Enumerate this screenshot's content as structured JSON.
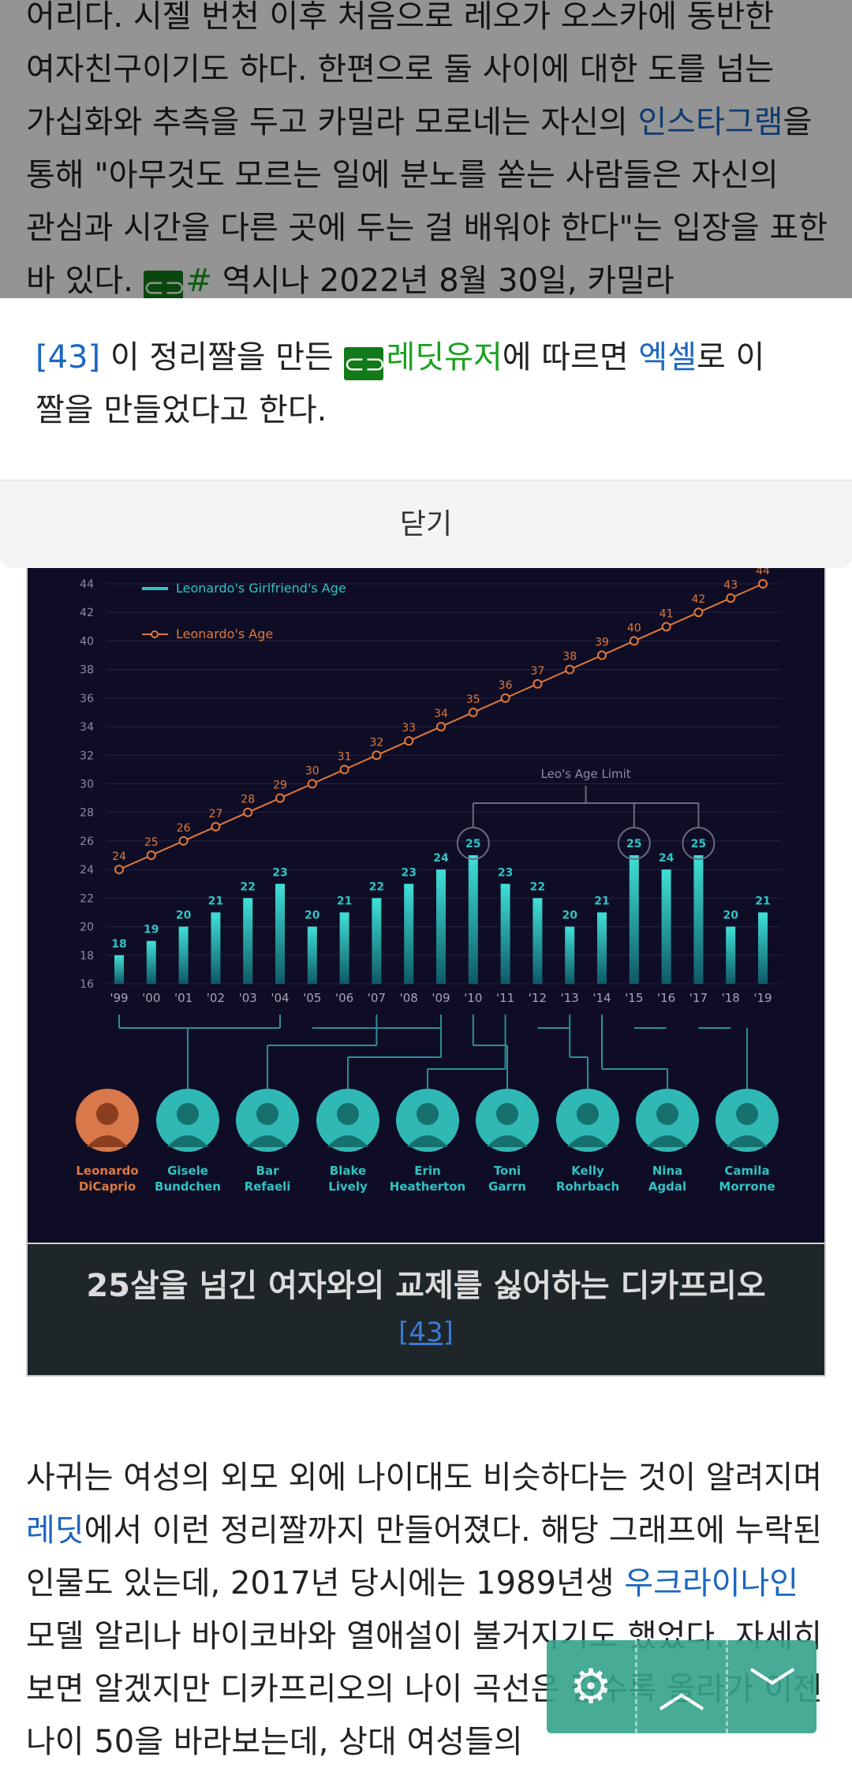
{
  "article": {
    "para1": {
      "s1": "어리다. 시젤 번천 이후 처음으로 레오가 오스카에 동반한 여자친구이기도 하다. 한편으로 둘 사이에 대한 도를 넘는 가십화와 추측을 두고 카밀라 모로네는 자신의 ",
      "link1": "인스타그램",
      "s2": "을 통해 \"아무것도 모르는 일에 분노를 쏟는 사람들은 자신의 관심과 시간을 다른 곳에 두는 걸 배워야 한다\"는 입장을 표한 바 있다. ",
      "ext_link": "#",
      "s3": " 역시나 2022년 8월 30일, 카밀라"
    },
    "para2": {
      "s1": "사귀는 여성의 외모 외에 나이대도 비슷하다는 것이 알려지며 ",
      "link1": "레딧",
      "s2": "에서 이런 정리짤까지 만들어졌다. 해당 그래프에 누락된 인물도 있는데, 2017년 당시에는 1989년생 ",
      "link2": "우크라이나인",
      "s3": " 모델 알리나 바이코바와 열애설이 불거지기도 했었다. 자세히 보면 알겠지만 디카프리오의 나이 곡선은 갈수록 올라가 이젠 나이 50을 바라보는데, 상대 여성들의"
    },
    "caption": {
      "title": "25살을 넘긴 여자와의 교제를 싫어하는 디카프리오",
      "ref": "[43]"
    }
  },
  "footnote_popup": {
    "ref": "[43]",
    "s1": " 이 정리짤을 만든 ",
    "ext_link": "레딧유저",
    "s2": "에 따르면 ",
    "link": "엑셀",
    "s3": "로 이 짤을 만들었다고 한다.",
    "close_label": "닫기"
  },
  "floating_buttons": [
    "gear-icon",
    "chevron-up-icon",
    "chevron-down-icon"
  ],
  "colors": {
    "accent_teal": "#2ec4c4",
    "orange": "#e0783a",
    "link_blue": "#1a66c0",
    "ext_green": "#19a01e"
  },
  "chart_data": {
    "type": "bar",
    "legend": [
      "Leonardo's Girlfriend's Age",
      "Leonardo's Age"
    ],
    "categories": [
      "'99",
      "'00",
      "'01",
      "'02",
      "'03",
      "'04",
      "'05",
      "'06",
      "'07",
      "'08",
      "'09",
      "'10",
      "'11",
      "'12",
      "'13",
      "'14",
      "'15",
      "'16",
      "'17",
      "'18",
      "'19"
    ],
    "series": [
      {
        "name": "Leonardo's Girlfriend's Age",
        "values": [
          18,
          19,
          20,
          21,
          22,
          23,
          20,
          21,
          22,
          23,
          24,
          25,
          23,
          22,
          20,
          21,
          25,
          24,
          25,
          20,
          21
        ]
      },
      {
        "name": "Leonardo's Age",
        "values": [
          24,
          25,
          26,
          27,
          28,
          29,
          30,
          31,
          32,
          33,
          34,
          35,
          36,
          37,
          38,
          39,
          40,
          41,
          42,
          43,
          44
        ]
      }
    ],
    "yticks": [
      16,
      18,
      20,
      22,
      24,
      26,
      28,
      30,
      32,
      34,
      36,
      38,
      40,
      42,
      44
    ],
    "ylim": [
      16,
      44
    ],
    "annotation": "Leo's Age Limit",
    "people": [
      {
        "first": "Leonardo",
        "last": "DiCaprio"
      },
      {
        "first": "Gisele",
        "last": "Bundchen"
      },
      {
        "first": "Bar",
        "last": "Refaeli"
      },
      {
        "first": "Blake",
        "last": "Lively"
      },
      {
        "first": "Erin",
        "last": "Heatherton"
      },
      {
        "first": "Toni",
        "last": "Garrn"
      },
      {
        "first": "Kelly",
        "last": "Rohrbach"
      },
      {
        "first": "Nina",
        "last": "Agdal"
      },
      {
        "first": "Camila",
        "last": "Morrone"
      }
    ]
  }
}
